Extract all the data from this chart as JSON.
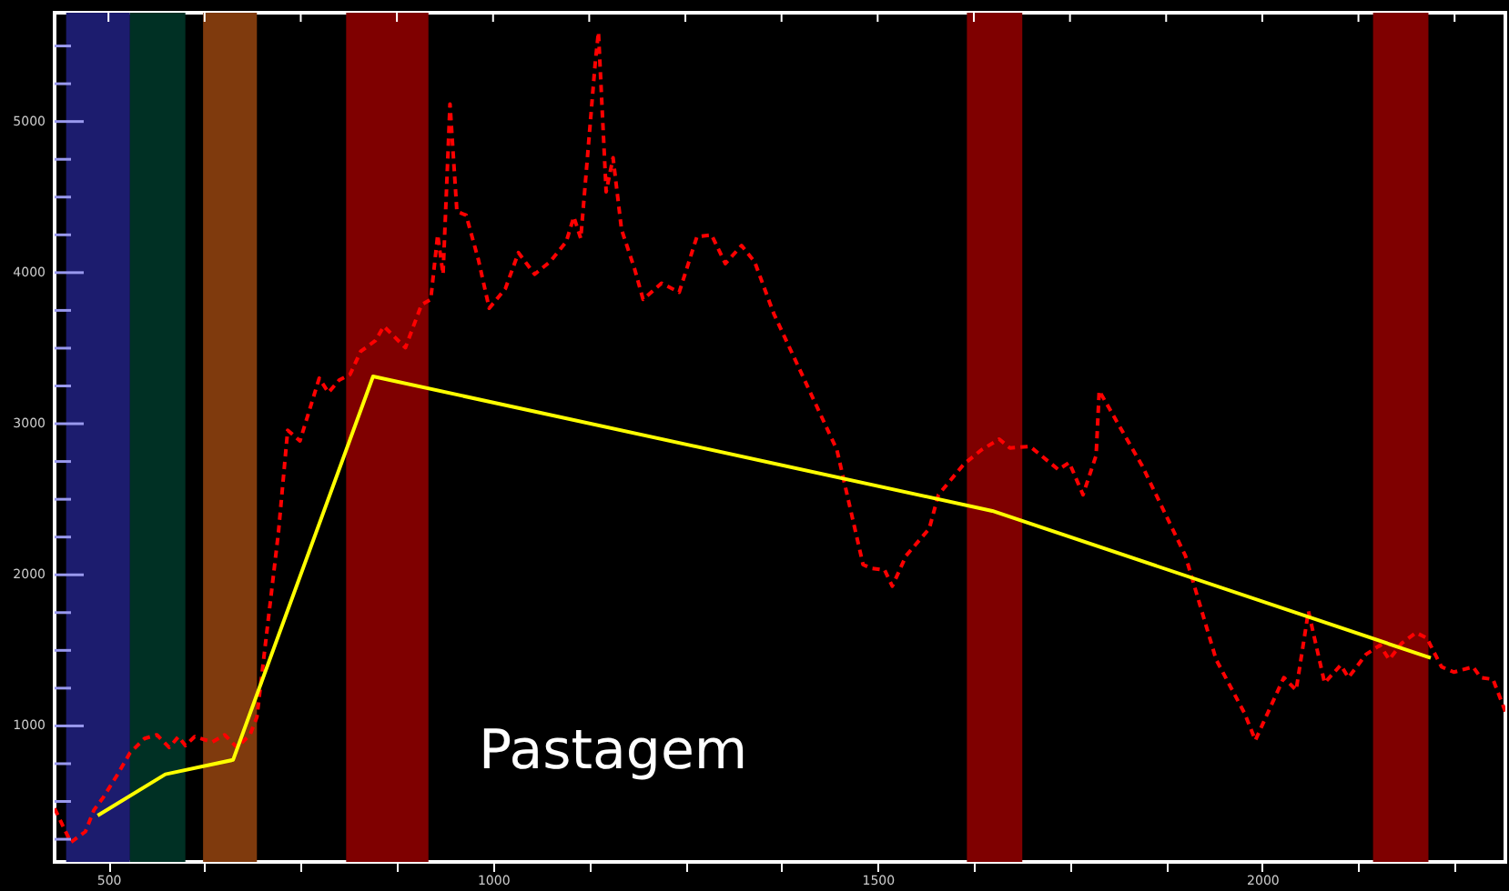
{
  "chart_data": {
    "type": "line",
    "xlim": [
      430,
      2316
    ],
    "ylim": [
      100,
      5720
    ],
    "xticks": [
      500,
      {
        "value": 625,
        "label": null
      },
      {
        "value": 750,
        "label": null
      },
      {
        "value": 875,
        "label": null
      },
      1000,
      {
        "value": 1125,
        "label": null
      },
      {
        "value": 1250,
        "label": null
      },
      {
        "value": 1375,
        "label": null
      },
      1500,
      {
        "value": 1625,
        "label": null
      },
      {
        "value": 1750,
        "label": null
      },
      {
        "value": 1875,
        "label": null
      },
      2000,
      {
        "value": 2125,
        "label": null
      },
      {
        "value": 2250,
        "label": null
      }
    ],
    "yticks": [
      {
        "value": 250,
        "label": null
      },
      {
        "value": 500,
        "label": null
      },
      {
        "value": 750,
        "label": null
      },
      1000,
      {
        "value": 1250,
        "label": null
      },
      {
        "value": 1500,
        "label": null
      },
      {
        "value": 1750,
        "label": null
      },
      2000,
      {
        "value": 2250,
        "label": null
      },
      {
        "value": 2500,
        "label": null
      },
      {
        "value": 2750,
        "label": null
      },
      3000,
      {
        "value": 3250,
        "label": null
      },
      {
        "value": 3500,
        "label": null
      },
      {
        "value": 3750,
        "label": null
      },
      4000,
      {
        "value": 4250,
        "label": null
      },
      {
        "value": 4500,
        "label": null
      },
      {
        "value": 4750,
        "label": null
      },
      5000,
      {
        "value": 5250,
        "label": null
      },
      {
        "value": 5500,
        "label": null
      }
    ],
    "grid": false,
    "marker": "none",
    "series": [
      {
        "color": "#ff0000",
        "line_style": "dashed",
        "x": [
          430,
          451,
          470,
          481,
          493,
          512,
          528,
          547,
          563,
          579,
          591,
          600,
          612,
          635,
          651,
          667,
          684,
          693,
          721,
          733,
          749,
          774,
          786,
          800,
          814,
          828,
          847,
          858,
          886,
          907,
          919,
          928,
          935,
          944,
          953,
          965,
          981,
          995,
          1016,
          1033,
          1054,
          1074,
          1095,
          1105,
          1114,
          1133,
          1137,
          1147,
          1156,
          1167,
          1184,
          1195,
          1219,
          1242,
          1265,
          1284,
          1302,
          1323,
          1340,
          1365,
          1447,
          1481,
          1491,
          1509,
          1519,
          1537,
          1567,
          1579,
          1612,
          1635,
          1658,
          1672,
          1698,
          1735,
          1749,
          1767,
          1784,
          1788,
          1844,
          1900,
          1940,
          1977,
          1991,
          2028,
          2044,
          2060,
          2081,
          2102,
          2112,
          2135,
          2153,
          2165,
          2181,
          2200,
          2214,
          2233,
          2249,
          2274,
          2284,
          2300,
          2316
        ],
        "values": [
          454,
          229,
          300,
          442,
          525,
          680,
          822,
          917,
          941,
          858,
          929,
          870,
          929,
          893,
          941,
          858,
          941,
          1059,
          2281,
          2957,
          2886,
          3301,
          3206,
          3289,
          3325,
          3479,
          3550,
          3645,
          3503,
          3788,
          3823,
          4250,
          3989,
          5116,
          4404,
          4380,
          4084,
          3764,
          3894,
          4132,
          3989,
          4072,
          4203,
          4369,
          4226,
          5400,
          5591,
          4535,
          4760,
          4285,
          4025,
          3823,
          3930,
          3870,
          4238,
          4250,
          4060,
          4179,
          4072,
          3728,
          2827,
          2068,
          2044,
          2032,
          1925,
          2127,
          2305,
          2530,
          2732,
          2827,
          2898,
          2839,
          2850,
          2696,
          2743,
          2530,
          2791,
          3218,
          2720,
          2127,
          1439,
          1083,
          905,
          1320,
          1237,
          1759,
          1285,
          1403,
          1320,
          1474,
          1534,
          1439,
          1546,
          1617,
          1581,
          1391,
          1356,
          1391,
          1320,
          1308,
          1095
        ]
      },
      {
        "color": "#ffff00",
        "line_style": "solid",
        "x": [
          486,
          574,
          662,
          844,
          1649,
          2219
        ],
        "values": [
          407,
          680,
          775,
          3313,
          2423,
          1450
        ]
      }
    ],
    "bands": [
      {
        "axis": "x",
        "from": 445,
        "to": 528,
        "color": "#1c1c6e"
      },
      {
        "axis": "x",
        "from": 528,
        "to": 600,
        "color": "#003024"
      },
      {
        "axis": "x",
        "from": 623,
        "to": 693,
        "color": "#7f3a0d"
      },
      {
        "axis": "x",
        "from": 809,
        "to": 916,
        "color": "#7f0000"
      },
      {
        "axis": "x",
        "from": 1616,
        "to": 1688,
        "color": "#7f0000"
      },
      {
        "axis": "x",
        "from": 2144,
        "to": 2216,
        "color": "#7f0000"
      }
    ],
    "annotations": [
      "Pastagem"
    ]
  }
}
